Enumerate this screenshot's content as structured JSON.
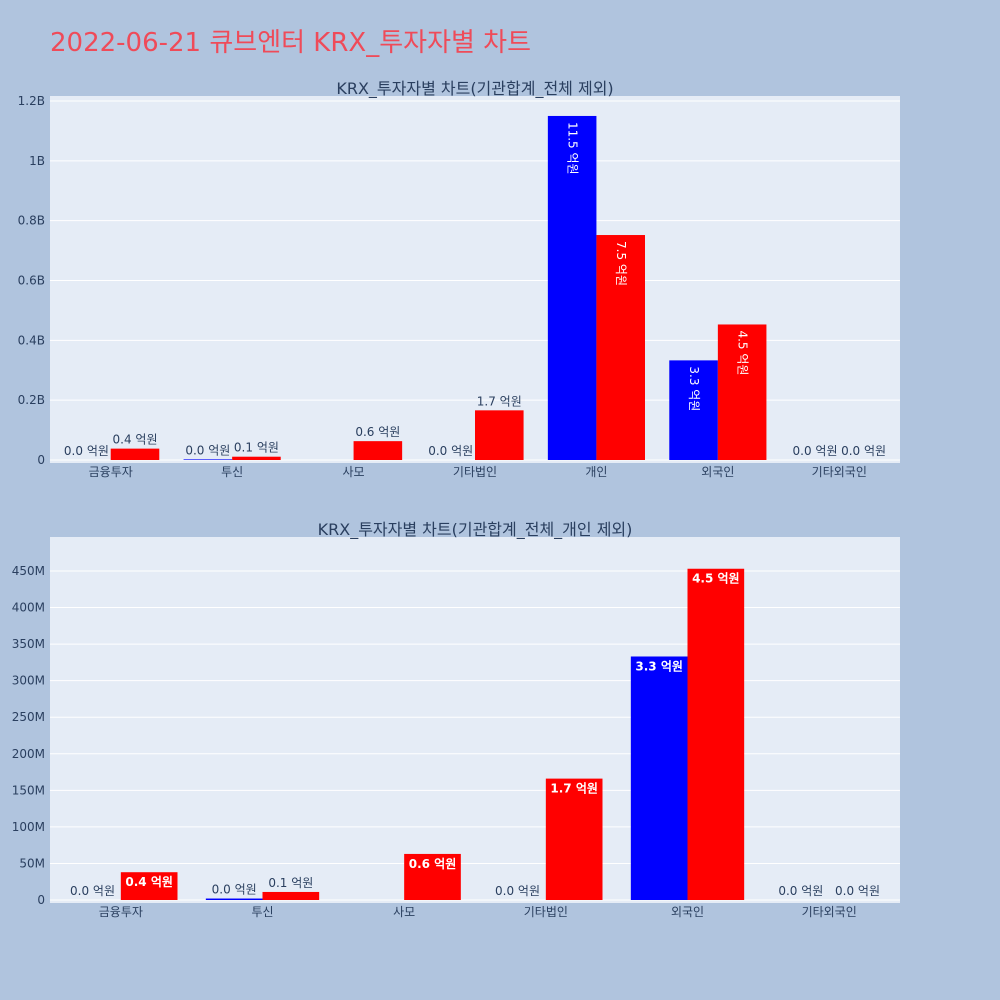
{
  "title": "2022-06-21 큐브엔터 KRX_투자자별 차트",
  "colors": {
    "title": "#ef4b59",
    "series1": "#0000ff",
    "series2": "#ff0000",
    "plot_bg": "#e5ecf6",
    "page_bg": "#b0c4de"
  },
  "chart_data": [
    {
      "type": "bar",
      "title": "KRX_투자자별 차트(기관합계_전체 제외)",
      "categories": [
        "금융투자",
        "투신",
        "사모",
        "기타법인",
        "개인",
        "외국인",
        "기타외국인"
      ],
      "ylim": [
        0,
        1200000000
      ],
      "yticks": [
        0,
        200000000,
        400000000,
        600000000,
        800000000,
        1000000000,
        1200000000
      ],
      "ytick_labels": [
        "0",
        "0.2B",
        "0.4B",
        "0.6B",
        "0.8B",
        "1B",
        "1.2B"
      ],
      "grid": true,
      "series": [
        {
          "color": "#0000ff",
          "values": [
            0,
            2000000,
            null,
            0,
            1150000000,
            333000000,
            0
          ],
          "labels": [
            "0.0 억원",
            "0.0 억원",
            "",
            "0.0 억원",
            "11.5 억원",
            "3.3 억원",
            "0.0 억원"
          ]
        },
        {
          "color": "#ff0000",
          "values": [
            38000000,
            11000000,
            63000000,
            166000000,
            752000000,
            453000000,
            0
          ],
          "labels": [
            "0.4 억원",
            "0.1 억원",
            "0.6 억원",
            "1.7 억원",
            "7.5 억원",
            "4.5 억원",
            "0.0 억원"
          ]
        }
      ]
    },
    {
      "type": "bar",
      "title": "KRX_투자자별 차트(기관합계_전체_개인 제외)",
      "categories": [
        "금융투자",
        "투신",
        "사모",
        "기타법인",
        "외국인",
        "기타외국인"
      ],
      "ylim": [
        0,
        480000000
      ],
      "yticks": [
        0,
        50000000,
        100000000,
        150000000,
        200000000,
        250000000,
        300000000,
        350000000,
        400000000,
        450000000
      ],
      "ytick_labels": [
        "0",
        "50M",
        "100M",
        "150M",
        "200M",
        "250M",
        "300M",
        "350M",
        "400M",
        "450M"
      ],
      "grid": true,
      "series": [
        {
          "color": "#0000ff",
          "values": [
            0,
            2000000,
            null,
            0,
            333000000,
            0
          ],
          "labels": [
            "0.0 억원",
            "0.0 억원",
            "",
            "0.0 억원",
            "3.3 억원",
            "0.0 억원"
          ]
        },
        {
          "color": "#ff0000",
          "values": [
            38000000,
            11000000,
            63000000,
            166000000,
            453000000,
            0
          ],
          "labels": [
            "0.4 억원",
            "0.1 억원",
            "0.6 억원",
            "1.7 억원",
            "4.5 억원",
            "0.0 억원"
          ]
        }
      ]
    }
  ]
}
